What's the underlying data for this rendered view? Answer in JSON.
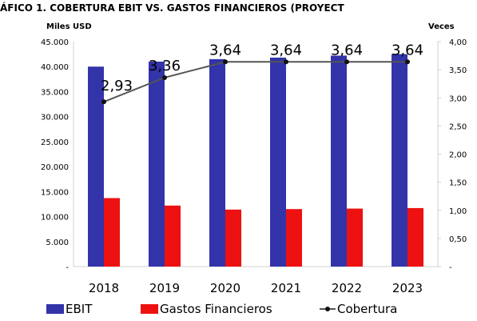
{
  "chart_data": {
    "type": "bar",
    "title": "ÁFICO 1. COBERTURA EBIT VS. GASTOS FINANCIEROS (PROYECT",
    "y_left_unit": "Miles USD",
    "y_right_unit": "Veces",
    "categories": [
      "2018",
      "2019",
      "2020",
      "2021",
      "2022",
      "2023"
    ],
    "y_left_ticks": [
      "45.000",
      "40.000",
      "35.000",
      "30.000",
      "25.000",
      "20.000",
      "15.000",
      "10.000",
      "5.000",
      "-"
    ],
    "y_right_ticks": [
      "4,00",
      "3,50",
      "3,00",
      "2,50",
      "2,00",
      "1,50",
      "1,00",
      "0,50",
      "-"
    ],
    "ylim_left": [
      0,
      45000
    ],
    "ylim_right": [
      0,
      4
    ],
    "series": [
      {
        "name": "EBIT",
        "kind": "bar",
        "axis": "left",
        "color": "#3333aa",
        "values": [
          40000,
          41000,
          41500,
          41800,
          42200,
          42500
        ]
      },
      {
        "name": "Gastos Financieros",
        "kind": "bar",
        "axis": "left",
        "color": "#ee1111",
        "values": [
          13700,
          12200,
          11400,
          11500,
          11600,
          11700
        ]
      },
      {
        "name": "Cobertura",
        "kind": "line",
        "axis": "right",
        "color": "#555555",
        "values": [
          2.93,
          3.36,
          3.64,
          3.64,
          3.64,
          3.64
        ],
        "labels": [
          "2,93",
          "3,36",
          "3,64",
          "3,64",
          "3,64",
          "3,64"
        ]
      }
    ],
    "legend_position": "bottom",
    "grid": false
  }
}
